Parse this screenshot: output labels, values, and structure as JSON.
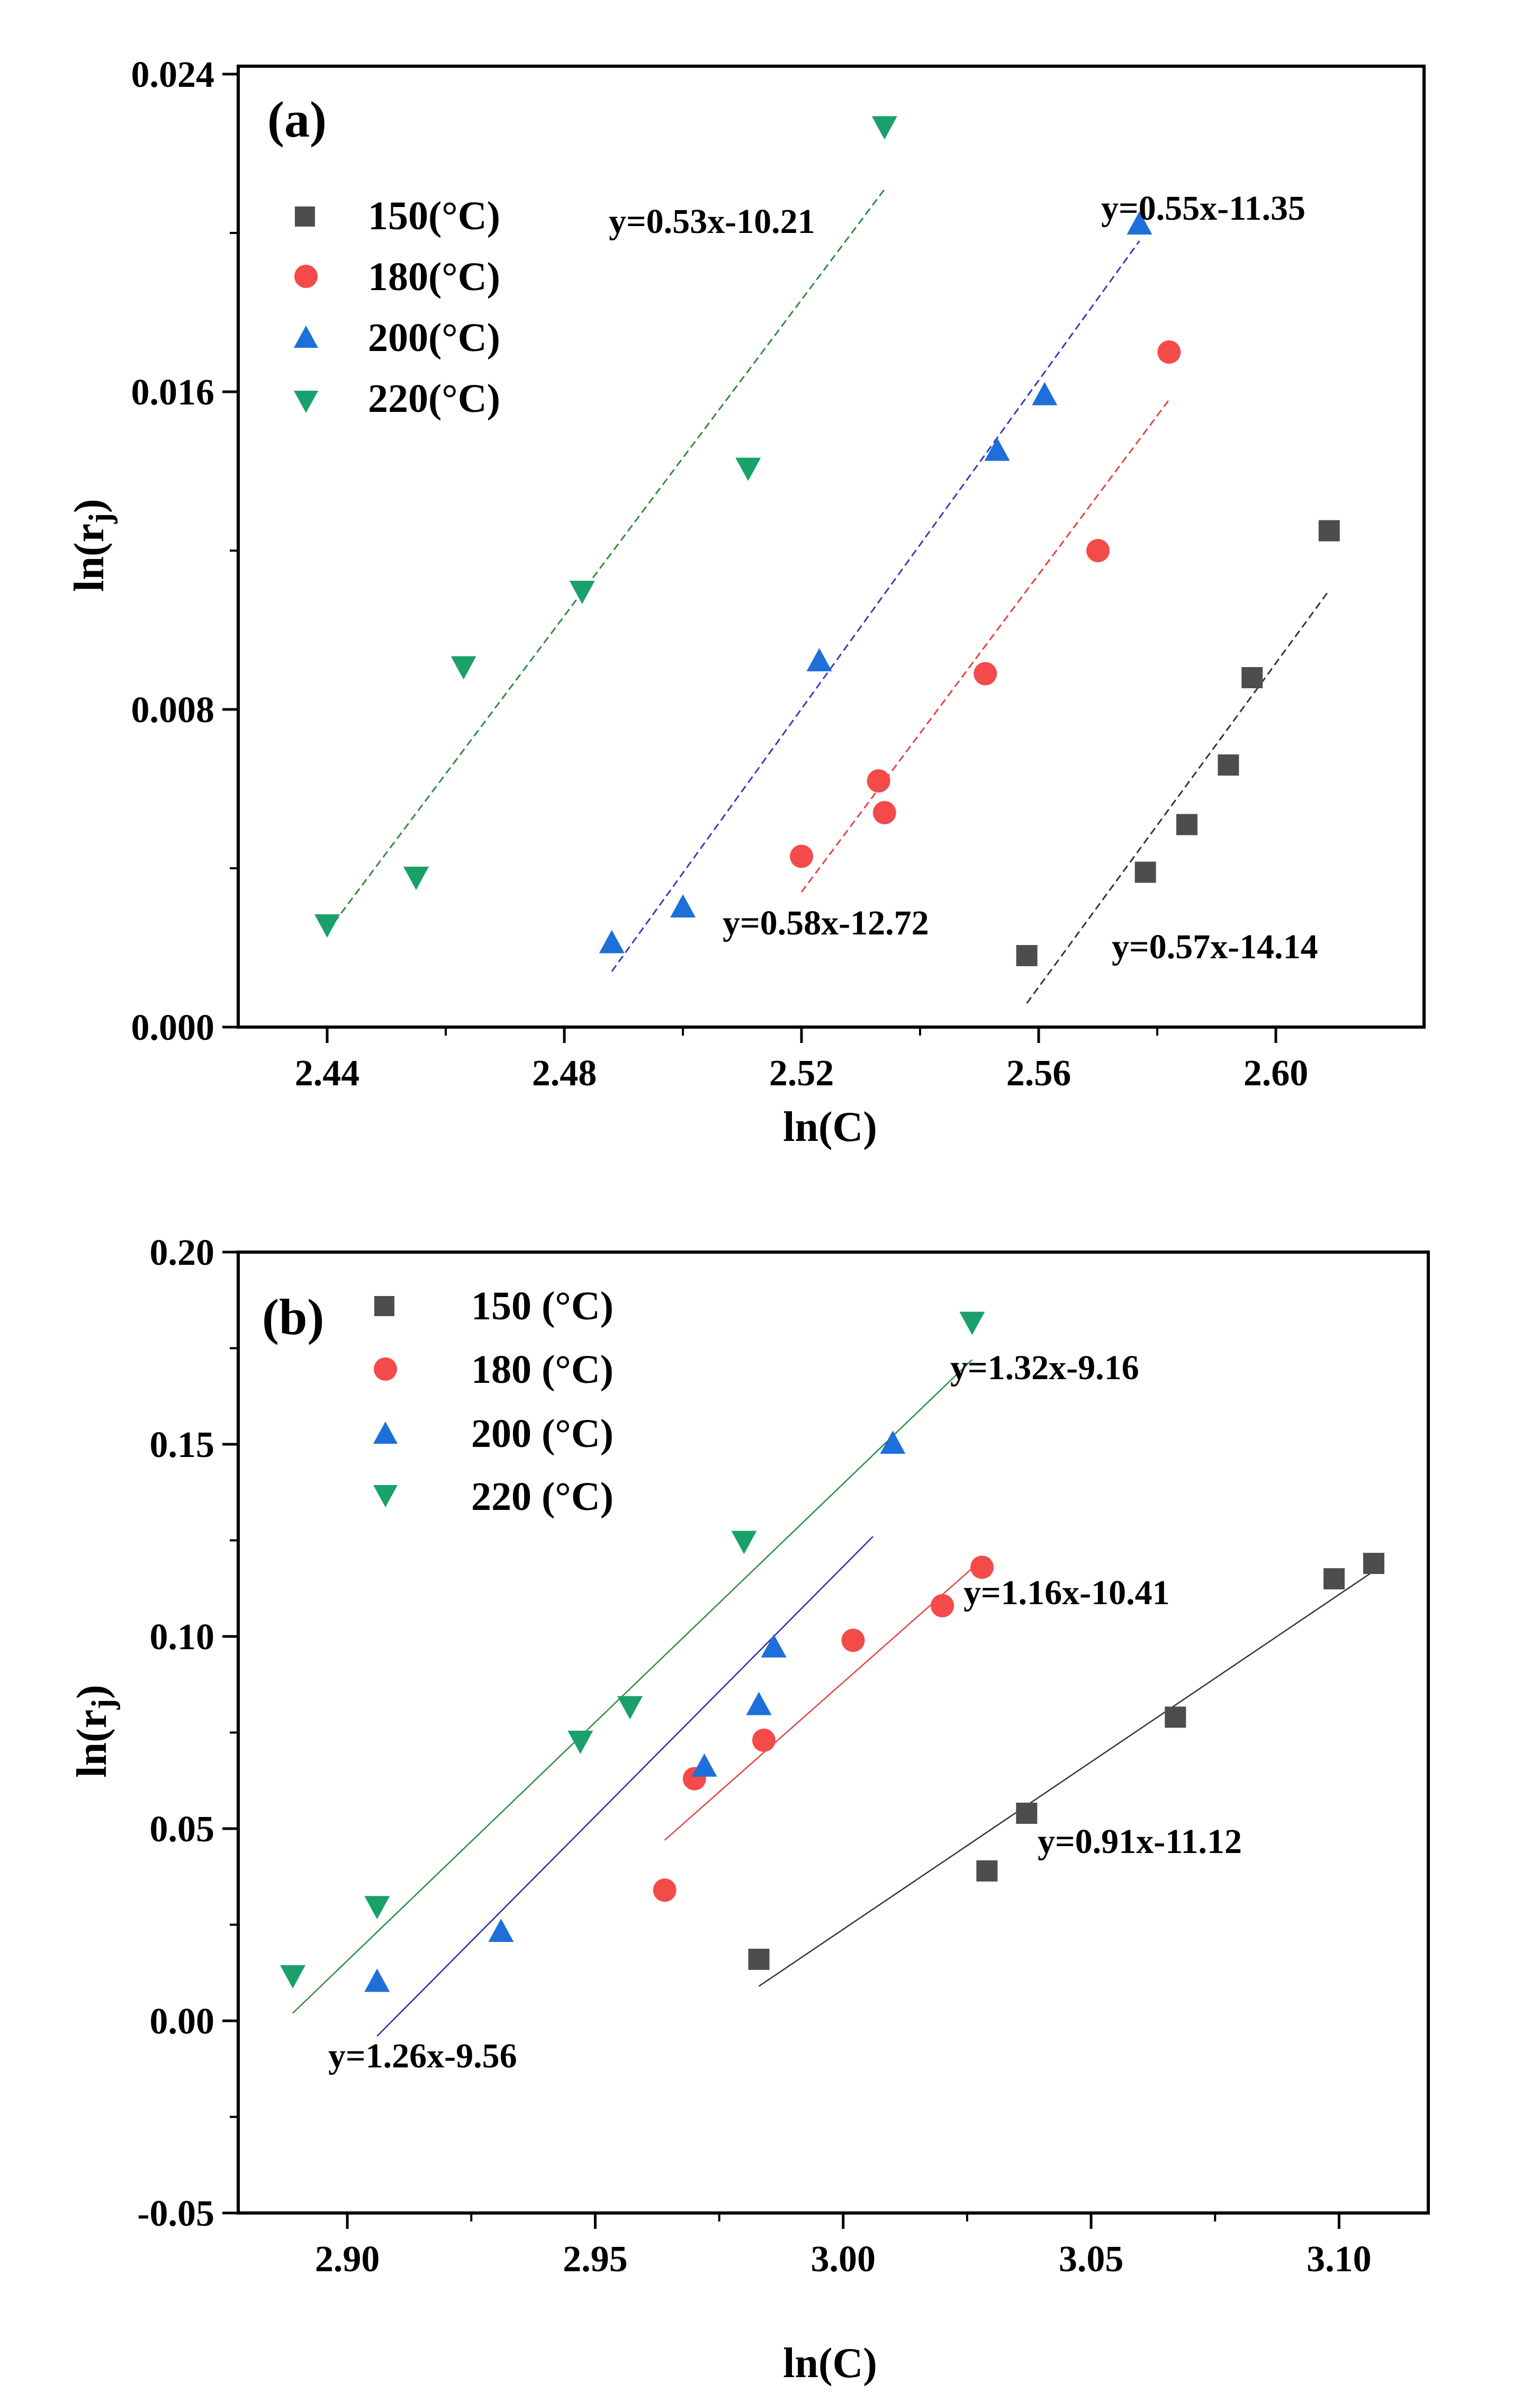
{
  "chart_data": [
    {
      "type": "scatter",
      "panel_label": "(a)",
      "xlabel": "ln(C)",
      "ylabel": "ln(r",
      "ylabel_sub": "j",
      "ylabel_close": ")",
      "xlim": [
        2.425,
        2.625
      ],
      "ylim": [
        0.0,
        0.0242
      ],
      "xticks": [
        2.44,
        2.48,
        2.52,
        2.56,
        2.6
      ],
      "xtick_labels": [
        "2.44",
        "2.48",
        "2.52",
        "2.56",
        "2.60"
      ],
      "yticks": [
        0.0,
        0.008,
        0.016,
        0.024
      ],
      "ytick_labels": [
        "0.000",
        "0.008",
        "0.016",
        "0.024"
      ],
      "legend": [
        "150(°C)",
        "180(°C)",
        "200(°C)",
        "220(°C)"
      ],
      "series": [
        {
          "name": "150(°C)",
          "marker": "square",
          "color": "#4d4d4d",
          "x": [
            2.558,
            2.578,
            2.585,
            2.592,
            2.596,
            2.609
          ],
          "y": [
            0.0018,
            0.0039,
            0.0051,
            0.0066,
            0.0088,
            0.0125
          ],
          "fit": {
            "label": "y=0.57x-14.14",
            "x": [
              2.558,
              2.609
            ],
            "y": [
              0.0006,
              0.011
            ],
            "color": "#333333"
          }
        },
        {
          "name": "180(°C)",
          "marker": "circle",
          "color": "#f44a4a",
          "x": [
            2.52,
            2.533,
            2.534,
            2.551,
            2.57,
            2.582
          ],
          "y": [
            0.0043,
            0.0062,
            0.0054,
            0.0089,
            0.012,
            0.017
          ],
          "fit": {
            "label": "y=0.58x-12.72",
            "x": [
              2.52,
              2.582
            ],
            "y": [
              0.0034,
              0.0158
            ],
            "color": "#e84040"
          }
        },
        {
          "name": "200(°C)",
          "marker": "triangle-up",
          "color": "#1e6fd9",
          "x": [
            2.488,
            2.5,
            2.523,
            2.553,
            2.561,
            2.577
          ],
          "y": [
            0.0021,
            0.003,
            0.0092,
            0.0145,
            0.0159,
            0.0202
          ],
          "fit": {
            "label": "y=0.55x-11.35",
            "x": [
              2.488,
              2.577
            ],
            "y": [
              0.0014,
              0.0198
            ],
            "color": "#3a3ab8"
          }
        },
        {
          "name": "220(°C)",
          "marker": "triangle-down",
          "color": "#1aa06a",
          "x": [
            2.44,
            2.455,
            2.463,
            2.483,
            2.511,
            2.534
          ],
          "y": [
            0.0026,
            0.0038,
            0.0091,
            0.011,
            0.0141,
            0.0227
          ],
          "fit": {
            "label": "y=0.53x-10.21",
            "x": [
              2.44,
              2.534
            ],
            "y": [
              0.0024,
              0.0211
            ],
            "color": "#2e8b3a"
          }
        }
      ]
    },
    {
      "type": "scatter",
      "panel_label": "(b)",
      "xlabel": "ln(C)",
      "ylabel": "ln(r",
      "ylabel_sub": "j",
      "ylabel_close": ")",
      "xlim": [
        2.878,
        3.118
      ],
      "ylim": [
        -0.05,
        0.2
      ],
      "xticks": [
        2.9,
        2.95,
        3.0,
        3.05,
        3.1
      ],
      "xtick_labels": [
        "2.90",
        "2.95",
        "3.00",
        "3.05",
        "3.10"
      ],
      "yticks": [
        -0.05,
        0.0,
        0.05,
        0.1,
        0.15,
        0.2
      ],
      "ytick_labels": [
        "-0.05",
        "0.00",
        "0.05",
        "0.10",
        "0.15",
        "0.20"
      ],
      "legend": [
        "150 (°C)",
        "180 (°C)",
        "200 (°C)",
        "220 (°C)"
      ],
      "series": [
        {
          "name": "150 (°C)",
          "marker": "square",
          "color": "#4d4d4d",
          "x": [
            2.983,
            3.029,
            3.037,
            3.067,
            3.099,
            3.107
          ],
          "y": [
            0.016,
            0.039,
            0.054,
            0.079,
            0.115,
            0.119
          ],
          "fit": {
            "label": "y=0.91x-11.12",
            "x": [
              2.983,
              3.107
            ],
            "y": [
              0.009,
              0.117
            ],
            "color": "#333333"
          }
        },
        {
          "name": "180 (°C)",
          "marker": "circle",
          "color": "#f44a4a",
          "x": [
            2.964,
            2.97,
            2.984,
            3.002,
            3.02,
            3.028
          ],
          "y": [
            0.034,
            0.063,
            0.073,
            0.099,
            0.108,
            0.118
          ],
          "fit": {
            "label": "y=1.16x-10.41",
            "x": [
              2.964,
              3.028
            ],
            "y": [
              0.047,
              0.12
            ],
            "color": "#e84040"
          }
        },
        {
          "name": "200 (°C)",
          "marker": "triangle-up",
          "color": "#1e6fd9",
          "x": [
            2.906,
            2.931,
            2.972,
            2.983,
            2.986,
            3.01
          ],
          "y": [
            0.01,
            0.023,
            0.066,
            0.082,
            0.097,
            0.15
          ],
          "fit": {
            "label": "y=1.26x-9.56",
            "x": [
              2.906,
              3.006
            ],
            "y": [
              -0.004,
              0.126
            ],
            "color": "#2a2aa0"
          }
        },
        {
          "name": "220 (°C)",
          "marker": "triangle-down",
          "color": "#1aa06a",
          "x": [
            2.889,
            2.906,
            2.947,
            2.957,
            2.98,
            3.026
          ],
          "y": [
            0.012,
            0.03,
            0.073,
            0.082,
            0.125,
            0.182
          ],
          "fit": {
            "label": "y=1.32x-9.16",
            "x": [
              2.889,
              3.026
            ],
            "y": [
              0.002,
              0.172
            ],
            "color": "#2e8b3a"
          }
        }
      ]
    }
  ]
}
